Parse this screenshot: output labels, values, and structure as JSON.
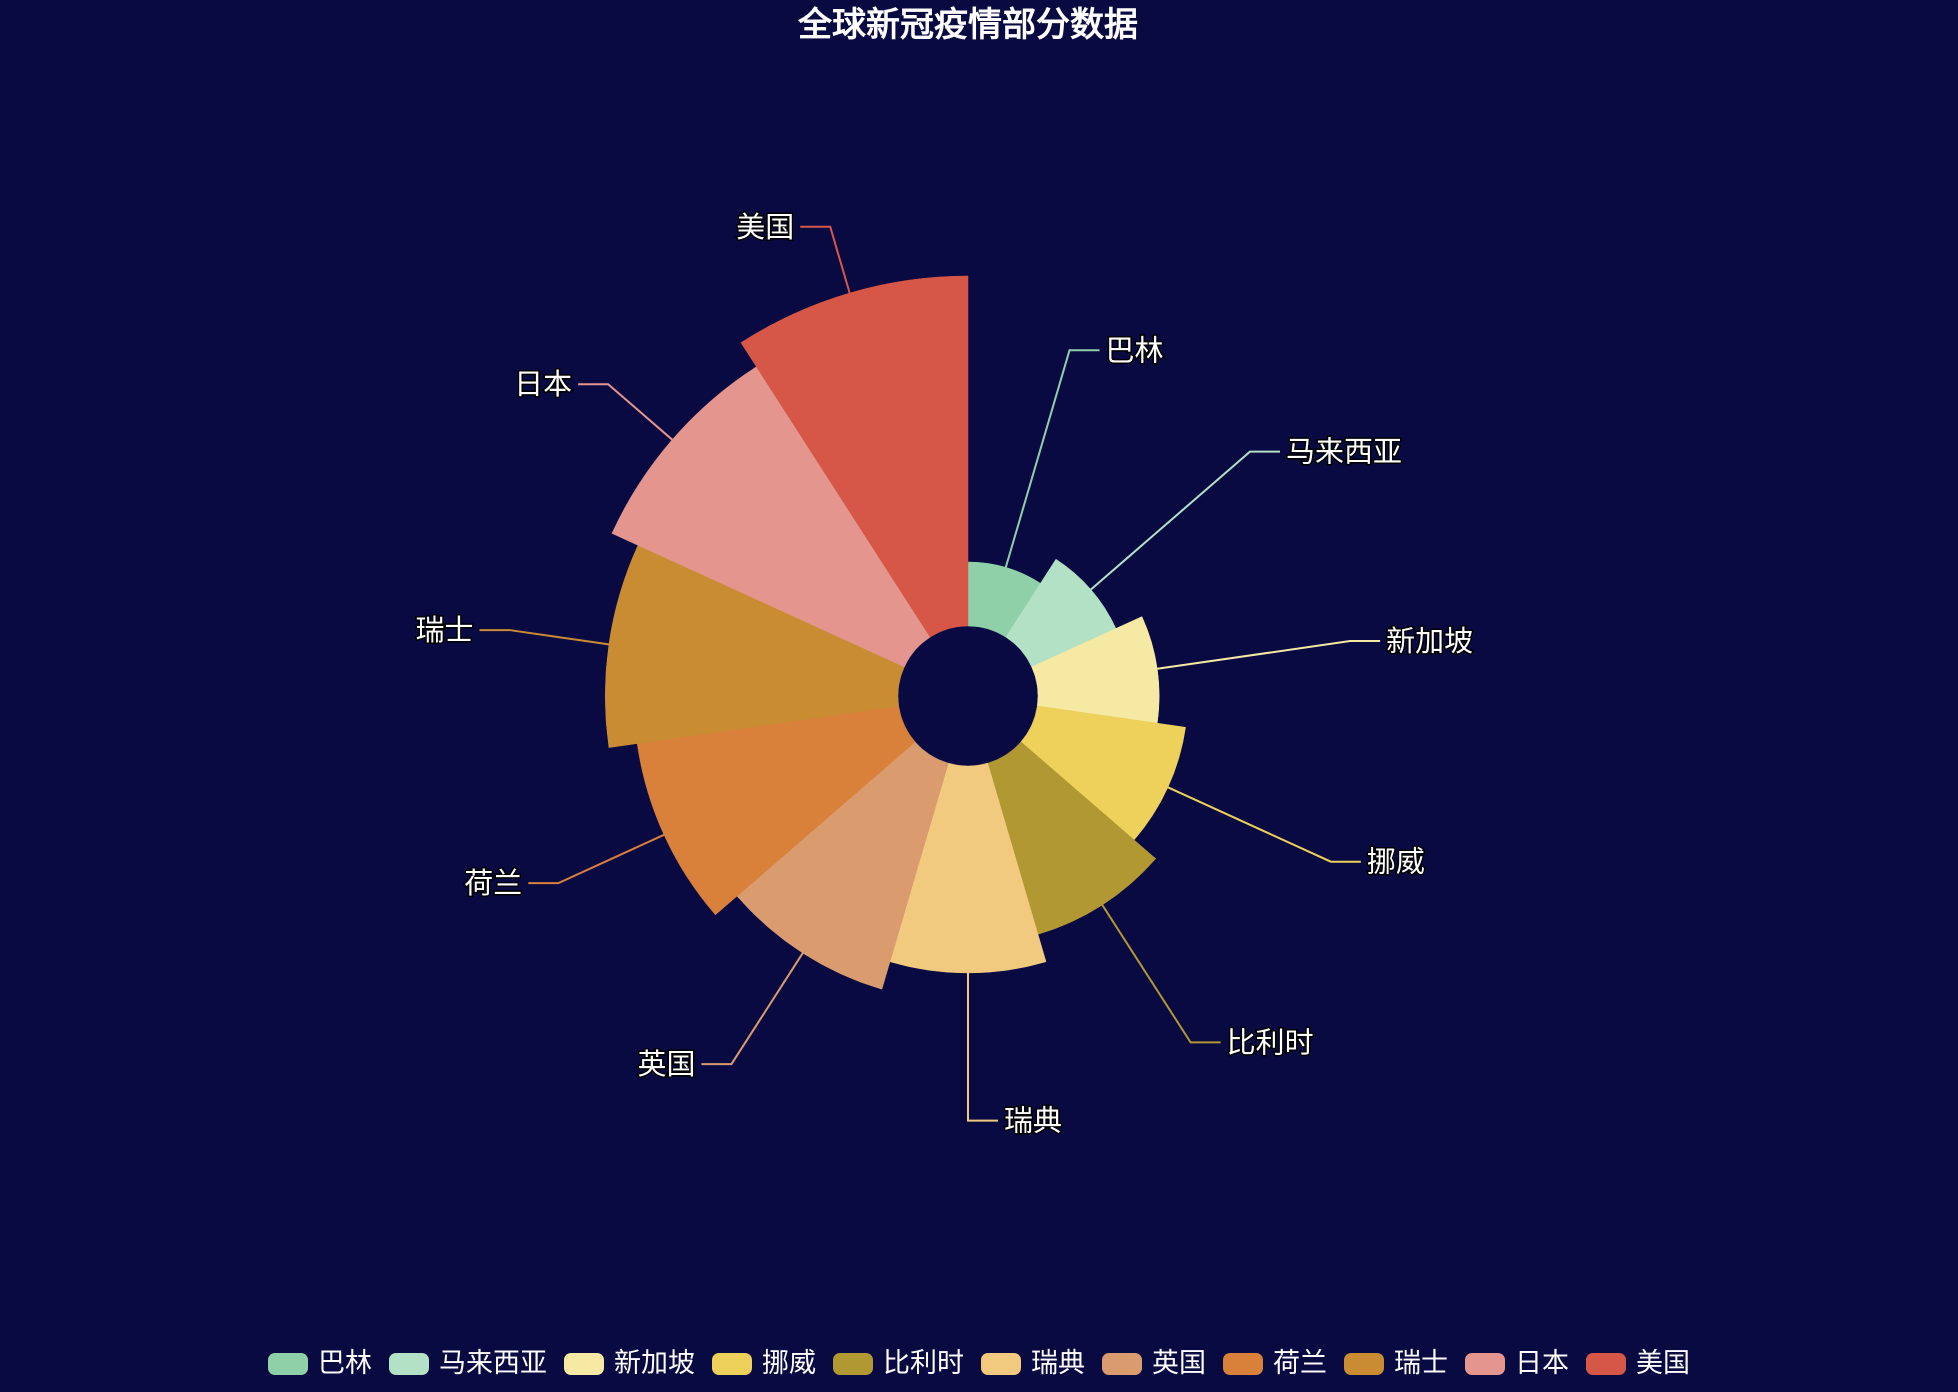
{
  "chart_data": {
    "type": "pie",
    "variant": "rose-radius",
    "title": "全球新冠疫情部分数据",
    "legend_position": "bottom",
    "slices": [
      {
        "name": "巴林",
        "value": 1,
        "color": "#8fd0a9"
      },
      {
        "name": "马来西亚",
        "value": 2,
        "color": "#b3e1c6"
      },
      {
        "name": "新加坡",
        "value": 3,
        "color": "#f5e9a3"
      },
      {
        "name": "挪威",
        "value": 4,
        "color": "#edd15b"
      },
      {
        "name": "比利时",
        "value": 5,
        "color": "#b19832"
      },
      {
        "name": "瑞典",
        "value": 6,
        "color": "#f1c97f"
      },
      {
        "name": "英国",
        "value": 7,
        "color": "#da9b6f"
      },
      {
        "name": "荷兰",
        "value": 8,
        "color": "#d9813b"
      },
      {
        "name": "瑞士",
        "value": 9,
        "color": "#ca8c33"
      },
      {
        "name": "日本",
        "value": 10,
        "color": "#e4968e"
      },
      {
        "name": "美国",
        "value": 11,
        "color": "#d65747"
      }
    ]
  }
}
